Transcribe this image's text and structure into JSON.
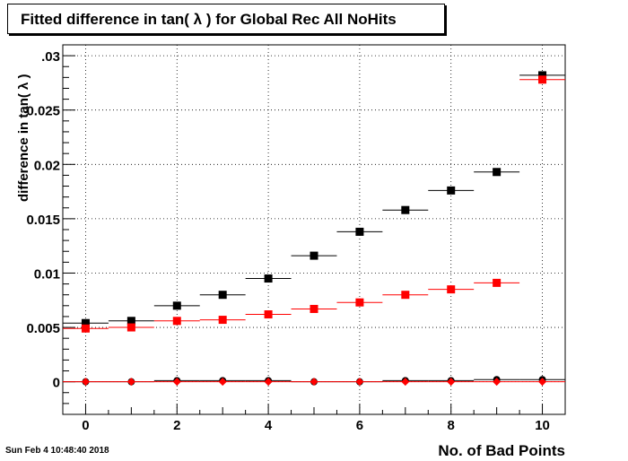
{
  "title": "Fitted difference in tan( λ ) for Global Rec All NoHits",
  "xlabel": "No. of Bad Points",
  "ylabel": "difference in tan( λ )",
  "timestamp": "Sun Feb  4 10:48:40 2018",
  "colors": {
    "black_series": "#000000",
    "red_series": "#ff0000"
  },
  "chart_data": {
    "type": "scatter",
    "title": "Fitted difference in tan( λ ) for Global Rec All NoHits",
    "xlabel": "No. of Bad Points",
    "ylabel": "difference in tan( λ )",
    "xlim": [
      -0.5,
      10.5
    ],
    "ylim": [
      -0.003,
      0.031
    ],
    "x_ticks": [
      0,
      2,
      4,
      6,
      8,
      10
    ],
    "y_ticks": [
      0,
      0.005,
      0.01,
      0.015,
      0.02,
      0.025,
      0.03
    ],
    "y_tick_labels": [
      "0",
      "0.005",
      "0.01",
      "0.015",
      "0.02",
      "0.025",
      ".03"
    ],
    "grid": true,
    "x": [
      0,
      1,
      2,
      3,
      4,
      5,
      6,
      7,
      8,
      9,
      10
    ],
    "x_error": 0.5,
    "series": [
      {
        "marker": "square",
        "color": "#000000",
        "values": [
          0.0054,
          0.0056,
          0.007,
          0.008,
          0.0095,
          0.0116,
          0.0138,
          0.0158,
          0.0176,
          0.0193,
          0.0282
        ]
      },
      {
        "marker": "square",
        "color": "#ff0000",
        "values": [
          0.0049,
          0.005,
          0.0056,
          0.0057,
          0.0062,
          0.0067,
          0.0073,
          0.008,
          0.0085,
          0.0091,
          0.0278
        ]
      },
      {
        "marker": "circle",
        "color": "#000000",
        "values": [
          0.0,
          0.0,
          0.0001,
          0.0001,
          0.0001,
          0.0,
          0.0,
          0.0001,
          0.0001,
          0.0002,
          0.0002
        ]
      },
      {
        "marker": "diamond",
        "color": "#ff0000",
        "values": [
          0.0,
          0.0,
          0.0,
          0.0,
          0.0,
          0.0,
          0.0,
          0.0,
          0.0,
          0.0,
          0.0
        ]
      }
    ]
  }
}
